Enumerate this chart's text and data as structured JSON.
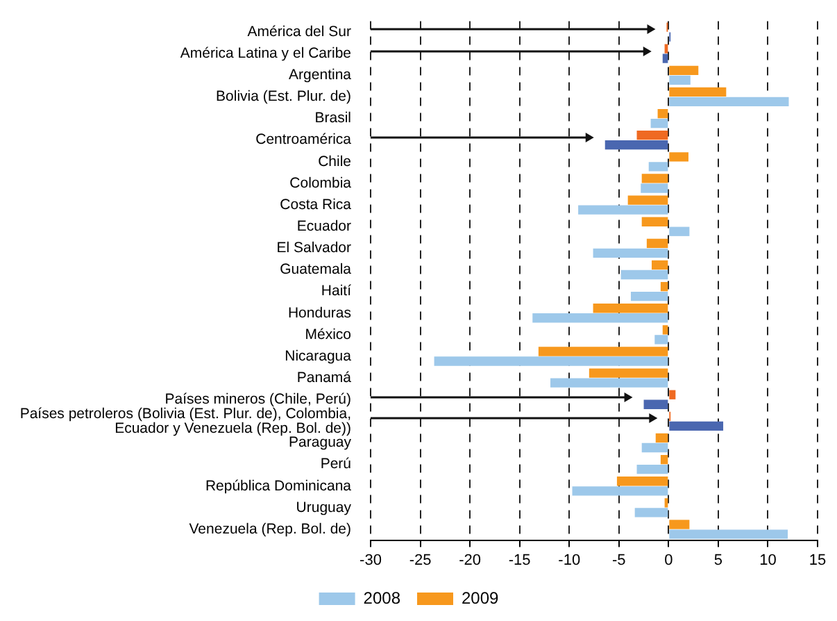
{
  "chart_data": {
    "type": "bar",
    "orientation": "horizontal",
    "categories": [
      "América del Sur",
      "América Latina y el Caribe",
      "Argentina",
      "Bolivia (Est. Plur. de)",
      "Brasil",
      "Centroamérica",
      "Chile",
      "Colombia",
      "Costa Rica",
      "Ecuador",
      "El Salvador",
      "Guatemala",
      "Haití",
      "Honduras",
      "México",
      "Nicaragua",
      "Panamá",
      "Países mineros (Chile, Perú)",
      "Países petroleros (Bolivia (Est. Plur. de), Colombia, Ecuador y Venezuela (Rep. Bol. de))",
      "Paraguay",
      "Perú",
      "República Dominicana",
      "Uruguay",
      "Venezuela (Rep. Bol. de)"
    ],
    "series": [
      {
        "name": "2008",
        "color": "#9dc8ea",
        "colors": [
          "#4a67b0",
          "#4a67b0",
          "#9dc8ea",
          "#9dc8ea",
          "#9dc8ea",
          "#4a67b0",
          "#9dc8ea",
          "#9dc8ea",
          "#9dc8ea",
          "#9dc8ea",
          "#9dc8ea",
          "#9dc8ea",
          "#9dc8ea",
          "#9dc8ea",
          "#9dc8ea",
          "#9dc8ea",
          "#9dc8ea",
          "#4a67b0",
          "#4a67b0",
          "#9dc8ea",
          "#9dc8ea",
          "#9dc8ea",
          "#9dc8ea",
          "#9dc8ea"
        ],
        "values": [
          0.2,
          -0.6,
          2.2,
          12.1,
          -1.8,
          -6.4,
          -2.0,
          -2.8,
          -9.1,
          2.1,
          -7.6,
          -4.8,
          -3.8,
          -13.7,
          -1.4,
          -23.6,
          -11.9,
          -2.5,
          5.5,
          -2.7,
          -3.2,
          -9.7,
          -3.4,
          12.0
        ]
      },
      {
        "name": "2009",
        "color": "#f7981d",
        "colors": [
          "#ef6a22",
          "#ef6a22",
          "#f7981d",
          "#f7981d",
          "#f7981d",
          "#ef6a22",
          "#f7981d",
          "#f7981d",
          "#f7981d",
          "#f7981d",
          "#f7981d",
          "#f7981d",
          "#f7981d",
          "#f7981d",
          "#f7981d",
          "#f7981d",
          "#f7981d",
          "#ef6a22",
          "#ef6a22",
          "#f7981d",
          "#f7981d",
          "#f7981d",
          "#f7981d",
          "#f7981d"
        ],
        "values": [
          -0.2,
          -0.4,
          3.0,
          5.8,
          -1.1,
          -3.2,
          2.0,
          -2.7,
          -4.1,
          -2.7,
          -2.2,
          -1.7,
          -0.8,
          -7.6,
          -0.6,
          -13.1,
          -8.0,
          0.7,
          0.2,
          -1.3,
          -0.8,
          -5.2,
          -0.4,
          2.1
        ]
      }
    ],
    "xlim": [
      -30,
      15
    ],
    "xticks": [
      -30,
      -25,
      -20,
      -15,
      -10,
      -5,
      0,
      5,
      10,
      15
    ],
    "grid": "x",
    "legend": "bottom"
  }
}
